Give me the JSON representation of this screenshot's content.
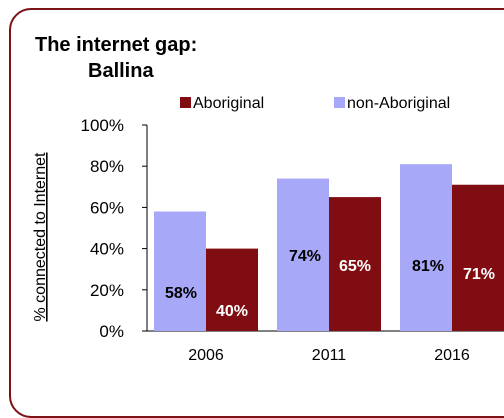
{
  "chart_data": {
    "type": "bar",
    "title": "The internet gap:",
    "subtitle": "Ballina",
    "ylabel": "% connected to Internet",
    "xlabel": "",
    "categories": [
      "2006",
      "2011",
      "2016"
    ],
    "series": [
      {
        "name": "Aboriginal",
        "color": "#7f0d12",
        "values": [
          40,
          65,
          71
        ],
        "labels": [
          "40%",
          "65%",
          "71%"
        ],
        "label_color": "#ffffff"
      },
      {
        "name": "non-Aboriginal",
        "color": "#a8a8f8",
        "values": [
          58,
          74,
          81
        ],
        "labels": [
          "58%",
          "74%",
          "81%"
        ],
        "label_color": "#000000"
      }
    ],
    "ylim": [
      0,
      100
    ],
    "yticks": [
      "0%",
      "20%",
      "40%",
      "60%",
      "80%",
      "100%"
    ],
    "grid": false,
    "legend": "top"
  }
}
